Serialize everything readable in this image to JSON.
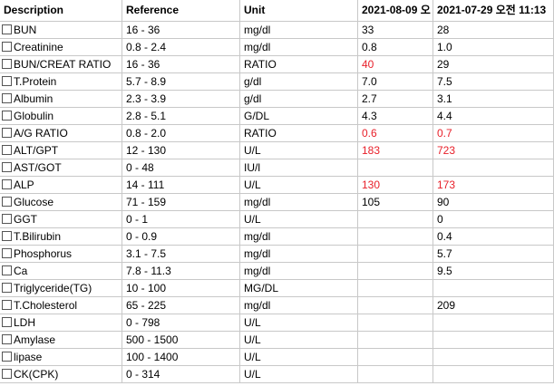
{
  "table": {
    "header": [
      "Description",
      "Reference",
      "Unit",
      "2021-08-09 오",
      "2021-07-29 오전 11:13"
    ],
    "rows": [
      [
        "BUN",
        "16 - 36",
        "mg/dl",
        "33",
        "28"
      ],
      [
        "Creatinine",
        "0.8 - 2.4",
        "mg/dl",
        "0.8",
        "1.0"
      ],
      [
        "BUN/CREAT RATIO",
        "16 - 36",
        "RATIO",
        {
          "text": "40",
          "color": "#e8202a"
        },
        "29"
      ],
      [
        "T.Protein",
        "5.7 - 8.9",
        "g/dl",
        "7.0",
        "7.5"
      ],
      [
        "Albumin",
        "2.3 - 3.9",
        "g/dl",
        "2.7",
        "3.1"
      ],
      [
        "Globulin",
        "2.8 - 5.1",
        "G/DL",
        "4.3",
        "4.4"
      ],
      [
        "A/G RATIO",
        "0.8 - 2.0",
        "RATIO",
        {
          "text": "0.6",
          "color": "#e8202a"
        },
        {
          "text": "0.7",
          "color": "#e8202a"
        }
      ],
      [
        "ALT/GPT",
        "12 - 130",
        "U/L",
        {
          "text": "183",
          "color": "#e8202a"
        },
        {
          "text": "723",
          "color": "#e8202a"
        }
      ],
      [
        "AST/GOT",
        "0 - 48",
        "IU/l",
        null,
        null
      ],
      [
        "ALP",
        "14 - 111",
        "U/L",
        {
          "text": "130",
          "color": "#e8202a"
        },
        {
          "text": "173",
          "color": "#e8202a"
        }
      ],
      [
        "Glucose",
        "71 - 159",
        "mg/dl",
        "105",
        "90"
      ],
      [
        "GGT",
        "0 - 1",
        "U/L",
        null,
        "0"
      ],
      [
        "T.Bilirubin",
        "0 - 0.9",
        "mg/dl",
        null,
        "0.4"
      ],
      [
        "Phosphorus",
        "3.1 - 7.5",
        "mg/dl",
        null,
        "5.7"
      ],
      [
        "Ca",
        "7.8 - 11.3",
        "mg/dl",
        null,
        "9.5"
      ],
      [
        "Triglyceride(TG)",
        "10 - 100",
        "MG/DL",
        null,
        null
      ],
      [
        "T.Cholesterol",
        "65 - 225",
        "mg/dl",
        null,
        "209"
      ],
      [
        "LDH",
        "0 - 798",
        "U/L",
        null,
        null
      ],
      [
        "Amylase",
        "500 - 1500",
        "U/L",
        null,
        null
      ],
      [
        "lipase",
        "100 - 1400",
        "U/L",
        null,
        null
      ],
      [
        "CK(CPK)",
        "0 - 314",
        "U/L",
        null,
        null
      ]
    ]
  }
}
